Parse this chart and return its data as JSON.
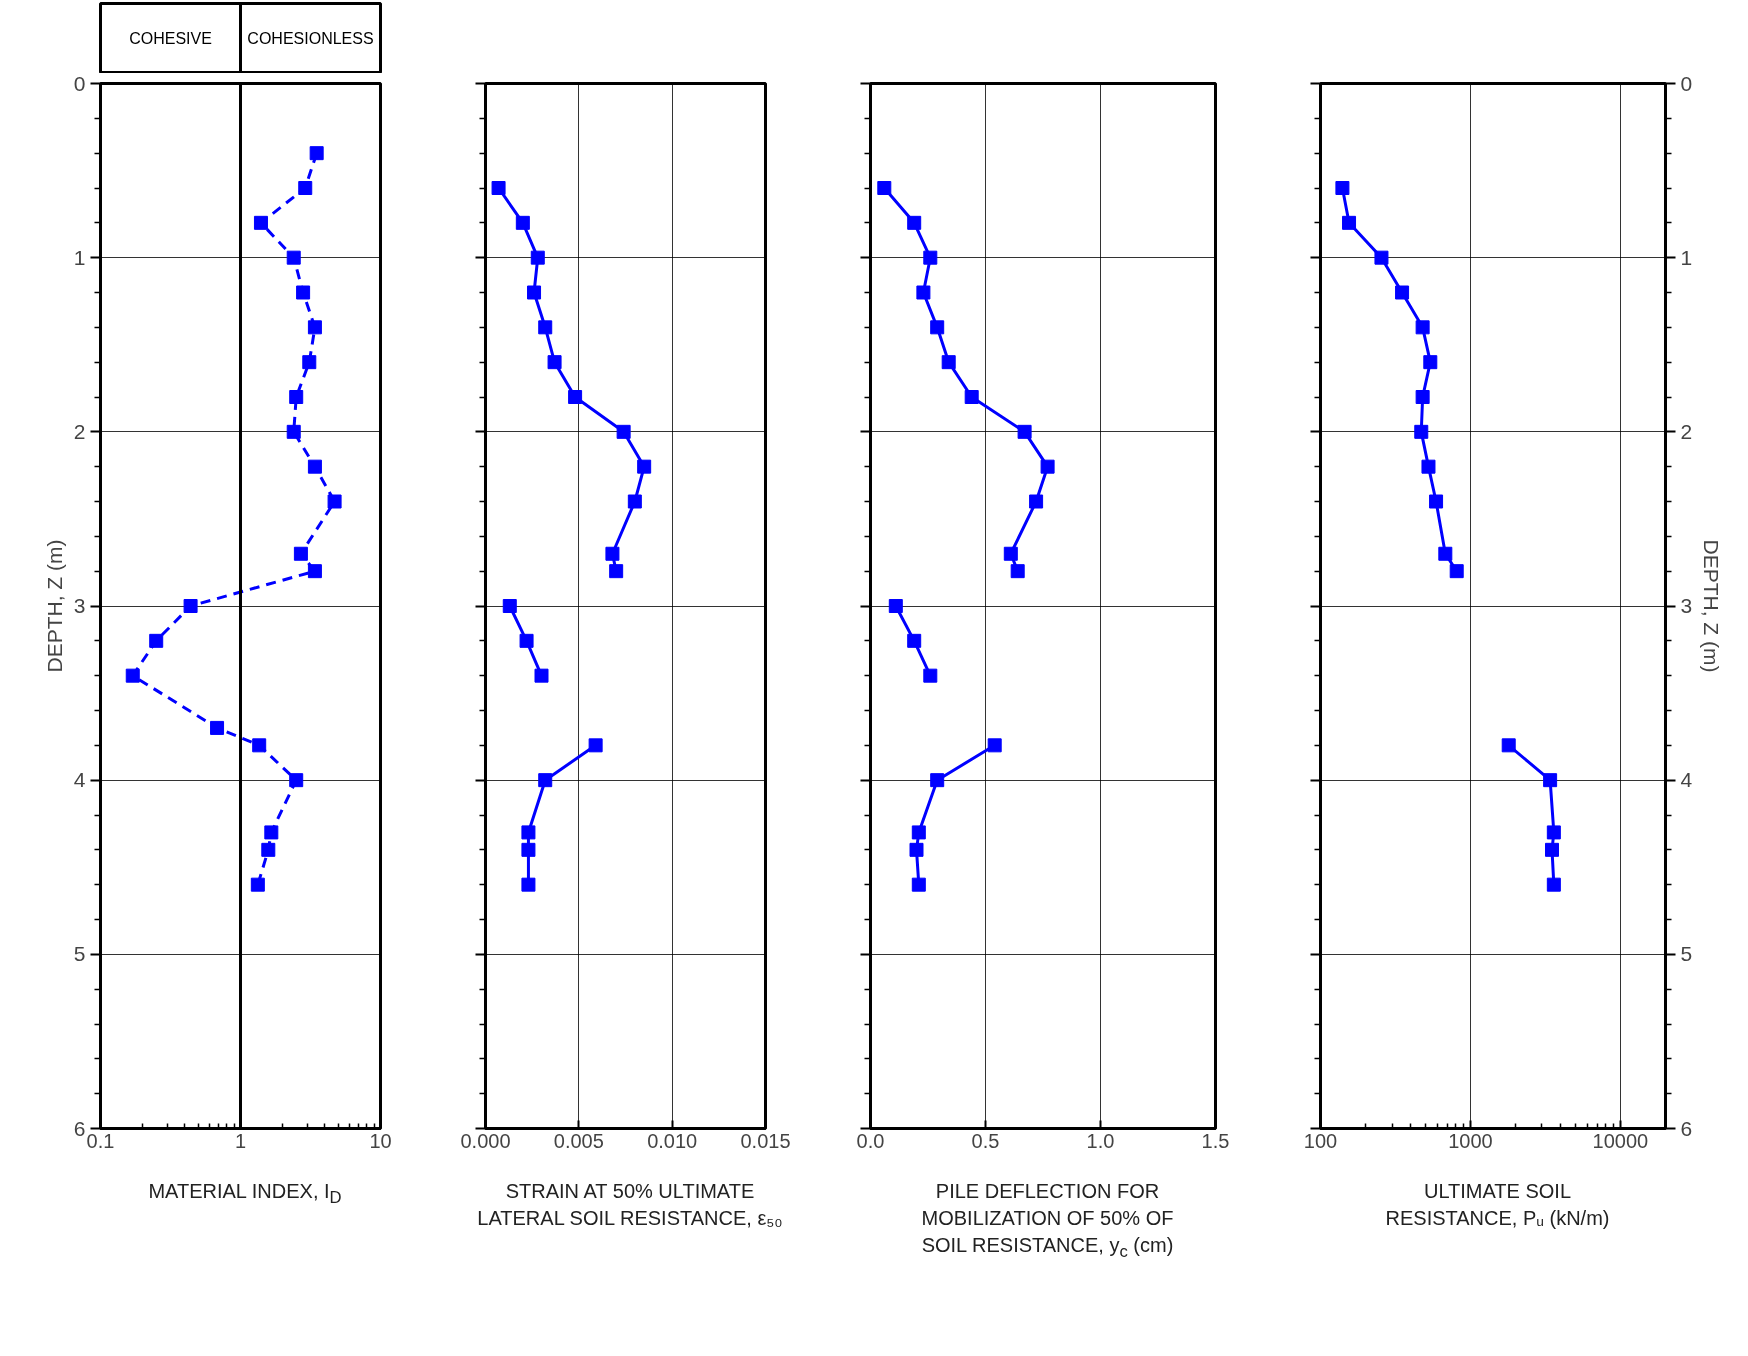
{
  "chart_data": [
    {
      "type": "line",
      "xlabel": "MATERIAL INDEX, I$_{D}$",
      "ylabel": "DEPTH, Z (m)",
      "xlim": [
        0.1,
        10
      ],
      "xticks": [
        0.1,
        1,
        10
      ],
      "ylim": [
        6,
        0
      ],
      "yticks": [
        0,
        1,
        2,
        3,
        4,
        5,
        6
      ],
      "log": "x",
      "grid": true,
      "marker": "square",
      "line_style": "dashed",
      "ref_lines": [
        {
          "axis": "x",
          "value": 1
        }
      ],
      "annotations": [
        "COHESIVE",
        "COHESIONLESS"
      ],
      "series": [
        {
          "color": "#0000ff",
          "x": [
            3.5,
            2.9,
            1.4,
            2.4,
            2.8,
            3.4,
            3.1,
            2.5,
            2.4,
            3.4,
            4.7,
            2.7,
            3.4,
            0.44,
            0.25,
            0.17,
            0.68,
            1.36,
            2.5,
            1.66,
            1.58,
            1.33
          ],
          "values": [
            0.4,
            0.6,
            0.8,
            1.0,
            1.2,
            1.4,
            1.6,
            1.8,
            2.0,
            2.2,
            2.4,
            2.7,
            2.8,
            3.0,
            3.2,
            3.4,
            3.7,
            3.8,
            4.0,
            4.3,
            4.4,
            4.6
          ]
        }
      ]
    },
    {
      "type": "line",
      "xlabel": "STRAIN AT 50% ULTIMATE\nLATERAL SOIL RESISTANCE, ε₅₀",
      "xlim": [
        0,
        0.015
      ],
      "xticks": [
        {
          "value": 0,
          "label": "0.000"
        },
        {
          "value": 0.005,
          "label": "0.005"
        },
        {
          "value": 0.01,
          "label": "0.010"
        },
        {
          "value": 0.015,
          "label": "0.015"
        }
      ],
      "ylim": [
        6,
        0
      ],
      "yticks": [
        0,
        1,
        2,
        3,
        4,
        5,
        6
      ],
      "tick_labels": "x",
      "grid": true,
      "marker": "square",
      "line_style": "solid",
      "series": [
        {
          "color": "#0000ff",
          "x": [
            0.0007,
            0.002,
            0.0028,
            0.0026,
            0.0032,
            0.0037,
            0.0048,
            0.0074,
            0.0085,
            0.008,
            0.0068,
            0.007,
            null,
            0.0013,
            0.0022,
            0.003,
            null,
            0.0059,
            0.0032,
            0.0023,
            0.0023,
            0.0023
          ],
          "values": [
            0.6,
            0.8,
            1.0,
            1.2,
            1.4,
            1.6,
            1.8,
            2.0,
            2.2,
            2.4,
            2.7,
            2.8,
            null,
            3.0,
            3.2,
            3.4,
            null,
            3.8,
            4.0,
            4.3,
            4.4,
            4.6
          ]
        }
      ]
    },
    {
      "type": "line",
      "xlabel": "PILE DEFLECTION FOR\nMOBILIZATION OF 50% OF\nSOIL RESISTANCE, y$_{c}$ (cm)",
      "xlim": [
        0,
        1.5
      ],
      "xticks": [
        {
          "value": 0,
          "label": "0.0"
        },
        {
          "value": 0.5,
          "label": "0.5"
        },
        {
          "value": 1,
          "label": "1.0"
        },
        {
          "value": 1.5,
          "label": "1.5"
        }
      ],
      "ylim": [
        6,
        0
      ],
      "yticks": [
        0,
        1,
        2,
        3,
        4,
        5,
        6
      ],
      "tick_labels": "x",
      "grid": true,
      "marker": "square",
      "line_style": "solid",
      "series": [
        {
          "color": "#0000ff",
          "x": [
            0.06,
            0.19,
            0.26,
            0.23,
            0.29,
            0.34,
            0.44,
            0.67,
            0.77,
            0.72,
            0.61,
            0.64,
            null,
            0.11,
            0.19,
            0.26,
            null,
            0.54,
            0.29,
            0.21,
            0.2,
            0.21
          ],
          "values": [
            0.6,
            0.8,
            1.0,
            1.2,
            1.4,
            1.6,
            1.8,
            2.0,
            2.2,
            2.4,
            2.7,
            2.8,
            null,
            3.0,
            3.2,
            3.4,
            null,
            3.8,
            4.0,
            4.3,
            4.4,
            4.6
          ]
        }
      ]
    },
    {
      "type": "line",
      "xlabel": "ULTIMATE SOIL\nRESISTANCE, Pᵤ (kN/m)",
      "y2label": "DEPTH, Z (m)",
      "xlim": [
        100,
        20000
      ],
      "xticks": [
        100,
        1000,
        10000
      ],
      "y2lim": [
        6,
        0
      ],
      "y2ticks": [
        0,
        1,
        2,
        3,
        4,
        5,
        6
      ],
      "log": "x",
      "grid": true,
      "marker": "square",
      "line_style": "solid",
      "series": [
        {
          "color": "#0000ff",
          "axis": "y2",
          "x": [
            140,
            155,
            255,
            350,
            480,
            540,
            480,
            470,
            525,
            590,
            680,
            810,
            null,
            1800,
            3400,
            3600,
            3500,
            3600
          ],
          "values": [
            0.6,
            0.8,
            1.0,
            1.2,
            1.4,
            1.6,
            1.8,
            2.0,
            2.2,
            2.4,
            2.7,
            2.8,
            null,
            3.8,
            4.0,
            4.3,
            4.4,
            4.6
          ]
        }
      ]
    }
  ]
}
